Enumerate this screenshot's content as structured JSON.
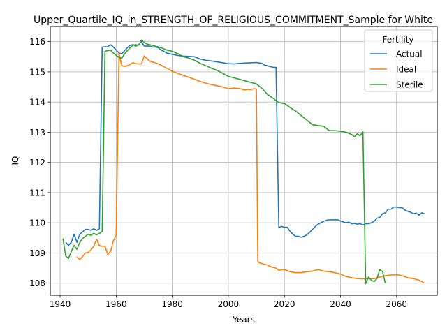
{
  "chart_data": {
    "type": "line",
    "title": "Upper_Quartile_IQ_in_STRENGTH_OF_RELIGIOUS_COMMITMENT_Sample for White",
    "xlabel": "Years",
    "ylabel": "IQ",
    "xlim": [
      1936.5,
      2074.5
    ],
    "ylim": [
      107.6,
      116.5
    ],
    "xticks": [
      1940,
      1960,
      1980,
      2000,
      2020,
      2040,
      2060
    ],
    "yticks": [
      108,
      109,
      110,
      111,
      112,
      113,
      114,
      115,
      116
    ],
    "grid": true,
    "legend": {
      "title": "Fertility",
      "placement": "upper right"
    },
    "series": [
      {
        "name": "Actual",
        "color": "#1f77b4",
        "x": [
          1942,
          1943,
          1944,
          1945,
          1946,
          1947,
          1948,
          1949,
          1950,
          1951,
          1952,
          1953,
          1954,
          1955,
          1956,
          1957,
          1958,
          1959,
          1960,
          1961,
          1962,
          1963,
          1964,
          1965,
          1966,
          1967,
          1968,
          1969,
          1970,
          1971,
          1972,
          1973,
          1974,
          1975,
          1976,
          1977,
          1978,
          1979,
          1980,
          1982,
          1984,
          1986,
          1988,
          1990,
          1992,
          1994,
          1996,
          1998,
          2000,
          2002,
          2004,
          2006,
          2008,
          2010,
          2012,
          2013,
          2014,
          2015,
          2016,
          2017,
          2018,
          2019,
          2020,
          2021,
          2022,
          2023,
          2024,
          2025,
          2026,
          2027,
          2028,
          2029,
          2030,
          2031,
          2032,
          2033,
          2034,
          2035,
          2036,
          2037,
          2038,
          2039,
          2040,
          2041,
          2042,
          2043,
          2044,
          2045,
          2046,
          2047,
          2048,
          2049,
          2050,
          2051,
          2052,
          2053,
          2054,
          2055,
          2056,
          2057,
          2058,
          2059,
          2060,
          2061,
          2062,
          2063,
          2064,
          2065,
          2066,
          2067,
          2068,
          2069,
          2070
        ],
        "y": [
          109.35,
          109.25,
          109.35,
          109.62,
          109.35,
          109.62,
          109.7,
          109.78,
          109.78,
          109.75,
          109.8,
          109.75,
          109.8,
          115.82,
          115.83,
          115.83,
          115.9,
          115.82,
          115.72,
          115.62,
          115.6,
          115.7,
          115.8,
          115.88,
          115.9,
          115.85,
          115.9,
          116.0,
          115.85,
          115.85,
          115.85,
          115.82,
          115.82,
          115.8,
          115.72,
          115.68,
          115.62,
          115.6,
          115.58,
          115.54,
          115.52,
          115.51,
          115.5,
          115.42,
          115.38,
          115.36,
          115.33,
          115.3,
          115.27,
          115.26,
          115.28,
          115.29,
          115.3,
          115.31,
          115.28,
          115.22,
          115.2,
          115.17,
          115.15,
          115.15,
          109.85,
          109.88,
          109.85,
          109.85,
          109.72,
          109.62,
          109.55,
          109.55,
          109.52,
          109.55,
          109.6,
          109.68,
          109.78,
          109.88,
          109.95,
          110.0,
          110.05,
          110.08,
          110.1,
          110.1,
          110.1,
          110.1,
          110.06,
          110.03,
          110.0,
          110.02,
          109.97,
          109.98,
          109.95,
          109.97,
          109.93,
          109.97,
          109.97,
          110.0,
          110.05,
          110.15,
          110.18,
          110.3,
          110.33,
          110.45,
          110.45,
          110.52,
          110.52,
          110.5,
          110.5,
          110.42,
          110.38,
          110.35,
          110.3,
          110.32,
          110.25,
          110.33,
          110.3
        ]
      },
      {
        "name": "Ideal",
        "color": "#ff7f0e",
        "x": [
          1946,
          1947,
          1948,
          1949,
          1950,
          1951,
          1952,
          1953,
          1954,
          1955,
          1956,
          1957,
          1958,
          1959,
          1960,
          1961,
          1962,
          1963,
          1964,
          1965,
          1966,
          1967,
          1968,
          1969,
          1970,
          1972,
          1974,
          1976,
          1978,
          1980,
          1982,
          1984,
          1986,
          1988,
          1990,
          1992,
          1994,
          1996,
          1998,
          2000,
          2002,
          2004,
          2005,
          2006,
          2007,
          2008,
          2009,
          2010,
          2010.5,
          2011,
          2012,
          2013,
          2014,
          2015,
          2016,
          2017,
          2018,
          2019,
          2020,
          2022,
          2024,
          2026,
          2028,
          2030,
          2032,
          2034,
          2036,
          2038,
          2040,
          2042,
          2044,
          2046,
          2048,
          2050,
          2052,
          2054,
          2056,
          2058,
          2060,
          2062,
          2064,
          2066,
          2068,
          2069,
          2070
        ],
        "y": [
          108.88,
          108.78,
          108.88,
          109.0,
          109.02,
          109.1,
          109.22,
          109.45,
          109.25,
          109.22,
          109.22,
          108.95,
          109.05,
          109.4,
          109.58,
          115.6,
          115.2,
          115.18,
          115.2,
          115.25,
          115.3,
          115.27,
          115.26,
          115.26,
          115.53,
          115.35,
          115.3,
          115.22,
          115.12,
          115.02,
          114.95,
          114.88,
          114.82,
          114.75,
          114.68,
          114.62,
          114.58,
          114.54,
          114.5,
          114.44,
          114.46,
          114.45,
          114.42,
          114.4,
          114.42,
          114.41,
          114.44,
          114.43,
          108.72,
          108.68,
          108.65,
          108.62,
          108.6,
          108.55,
          108.52,
          108.5,
          108.42,
          108.45,
          108.45,
          108.38,
          108.35,
          108.35,
          108.38,
          108.4,
          108.45,
          108.4,
          108.38,
          108.35,
          108.3,
          108.22,
          108.18,
          108.15,
          108.14,
          108.15,
          108.15,
          108.2,
          108.25,
          108.27,
          108.28,
          108.25,
          108.18,
          108.15,
          108.1,
          108.05,
          108.0
        ]
      },
      {
        "name": "Sterile",
        "color": "#2ca02c",
        "x": [
          1941,
          1942,
          1943,
          1944,
          1945,
          1946,
          1947,
          1948,
          1949,
          1950,
          1951,
          1952,
          1953,
          1954,
          1955,
          1956,
          1957,
          1958,
          1959,
          1960,
          1961,
          1962,
          1963,
          1964,
          1965,
          1966,
          1967,
          1968,
          1969,
          1970,
          1971,
          1972,
          1974,
          1976,
          1978,
          1980,
          1982,
          1984,
          1986,
          1988,
          1990,
          1992,
          1994,
          1996,
          1998,
          2000,
          2002,
          2004,
          2006,
          2008,
          2010,
          2012,
          2014,
          2016,
          2018,
          2020,
          2022,
          2024,
          2026,
          2028,
          2030,
          2032,
          2034,
          2036,
          2038,
          2040,
          2042,
          2044,
          2045,
          2046,
          2047,
          2048,
          2049,
          2050,
          2051,
          2052,
          2053,
          2054,
          2055,
          2056
        ],
        "y": [
          109.48,
          108.9,
          108.82,
          109.05,
          109.25,
          109.12,
          109.35,
          109.48,
          109.55,
          109.62,
          109.58,
          109.65,
          109.6,
          109.65,
          109.72,
          115.68,
          115.7,
          115.72,
          115.62,
          115.55,
          115.48,
          115.45,
          115.6,
          115.7,
          115.8,
          115.88,
          115.9,
          115.88,
          116.05,
          115.98,
          115.92,
          115.9,
          115.85,
          115.8,
          115.72,
          115.68,
          115.6,
          115.5,
          115.45,
          115.38,
          115.28,
          115.2,
          115.12,
          115.05,
          114.95,
          114.85,
          114.8,
          114.75,
          114.7,
          114.65,
          114.6,
          114.45,
          114.25,
          114.12,
          113.98,
          113.95,
          113.82,
          113.7,
          113.55,
          113.4,
          113.25,
          113.22,
          113.2,
          113.05,
          113.05,
          113.03,
          113.0,
          112.92,
          112.85,
          112.95,
          112.88,
          113.02,
          107.98,
          108.2,
          108.1,
          108.05,
          108.15,
          108.45,
          108.38,
          108.0
        ]
      }
    ]
  }
}
